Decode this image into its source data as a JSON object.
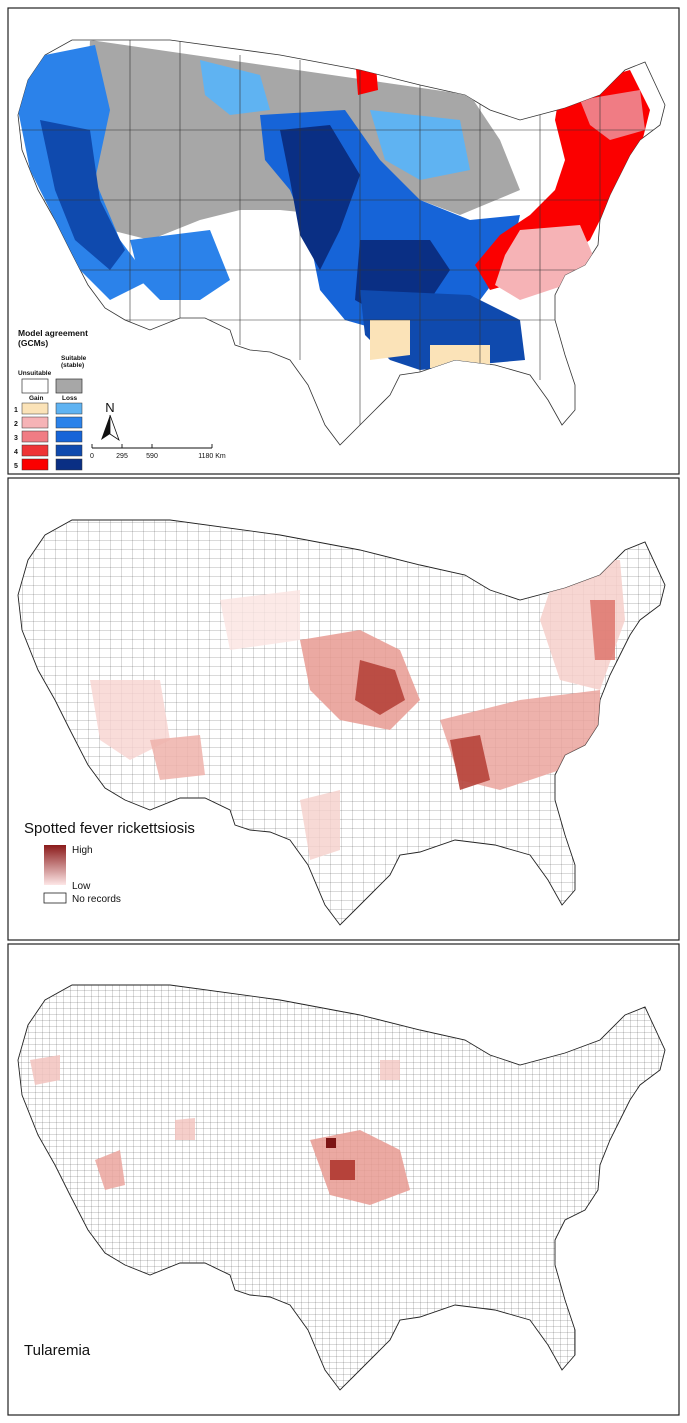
{
  "panel1": {
    "legend": {
      "title_line1": "Model agreement",
      "title_line2": "(GCMs)",
      "unsuitable": "Unsuitable",
      "suitable_line1": "Suitable",
      "suitable_line2": "(stable)",
      "gain": "Gain",
      "loss": "Loss",
      "levels": [
        "1",
        "2",
        "3",
        "4",
        "5"
      ],
      "gain_colors": [
        "#fbe3b8",
        "#f6b3b6",
        "#f07c84",
        "#ee3436",
        "#fb0000"
      ],
      "loss_colors": [
        "#5fb3f2",
        "#2b82ea",
        "#1664d8",
        "#0f4aae",
        "#0a2f84"
      ],
      "unsuitable_color": "#ffffff",
      "suitable_color": "#a7a7a7"
    },
    "north": "N",
    "scale_ticks": [
      "0",
      "295",
      "590",
      "1180 Km"
    ]
  },
  "panel2": {
    "title": "Spotted fever rickettsiosis",
    "legend": {
      "high": "High",
      "low": "Low",
      "none": "No records"
    },
    "ramp": [
      "#8b1a1a",
      "#fde6e6"
    ]
  },
  "panel3": {
    "title": "Tularemia"
  }
}
